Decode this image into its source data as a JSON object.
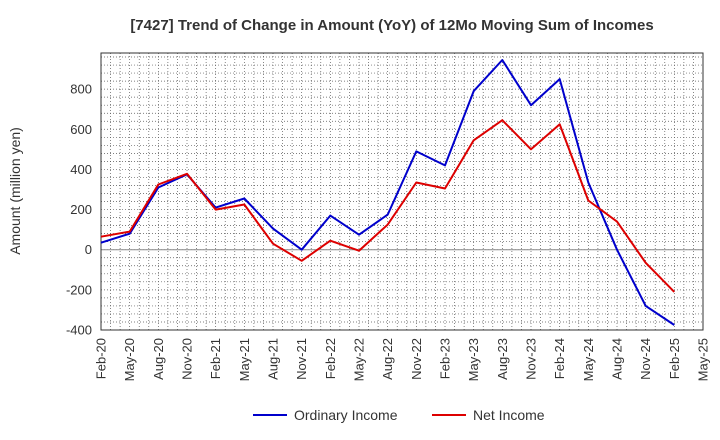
{
  "chart_data": {
    "type": "line",
    "title": "[7427]  Trend of Change in Amount (YoY) of 12Mo Moving Sum of Incomes",
    "xlabel": "",
    "ylabel": "Amount (million yen)",
    "ylim": [
      -400,
      980
    ],
    "yticks": [
      -400,
      -200,
      0,
      200,
      400,
      600,
      800
    ],
    "x_tick_labels": [
      "Feb-20",
      "May-20",
      "Aug-20",
      "Nov-20",
      "Feb-21",
      "May-21",
      "Aug-21",
      "Nov-21",
      "Feb-22",
      "May-22",
      "Aug-22",
      "Nov-22",
      "Feb-23",
      "May-23",
      "Aug-23",
      "Nov-23",
      "Feb-24",
      "May-24",
      "Aug-24",
      "Nov-24",
      "Feb-25",
      "May-25"
    ],
    "grid": true,
    "legend_position": "bottom",
    "series": [
      {
        "name": "Ordinary Income",
        "color": "#0000cc",
        "values": [
          35,
          80,
          310,
          375,
          210,
          255,
          105,
          0,
          170,
          75,
          175,
          490,
          420,
          790,
          945,
          720,
          850,
          335,
          0,
          -280,
          -375
        ]
      },
      {
        "name": "Net Income",
        "color": "#dd0000",
        "values": [
          65,
          90,
          325,
          378,
          200,
          225,
          30,
          -55,
          45,
          -5,
          125,
          335,
          305,
          545,
          645,
          500,
          625,
          245,
          140,
          -65,
          -210
        ]
      }
    ]
  }
}
